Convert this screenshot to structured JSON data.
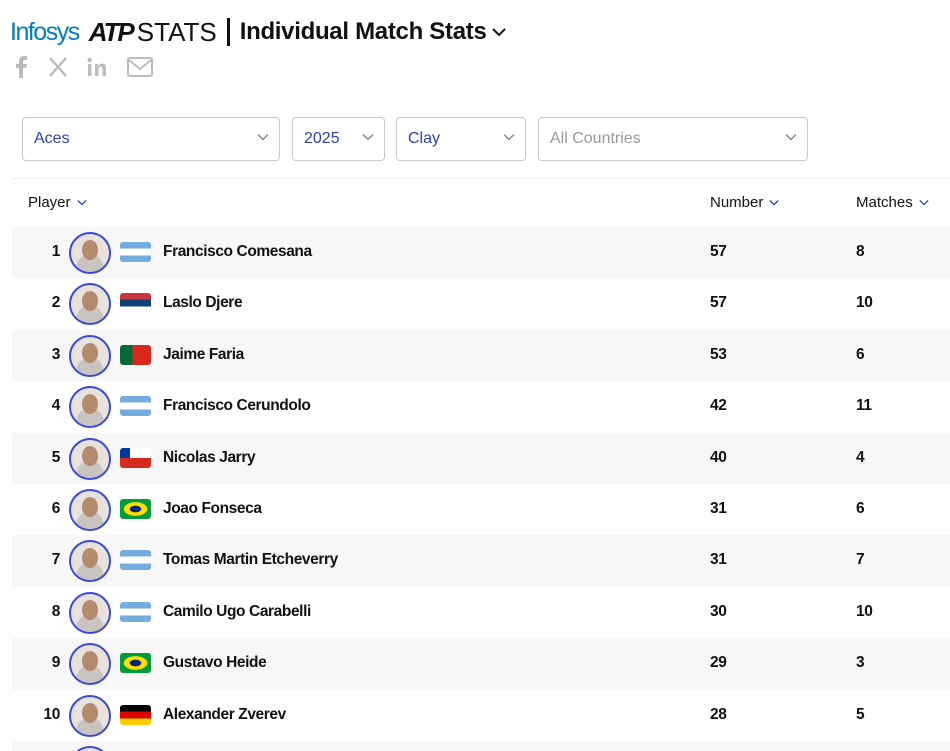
{
  "header": {
    "brand": "Infosys",
    "logo": "ATP",
    "stats": "STATS",
    "title": "Individual Match Stats"
  },
  "filters": [
    "Aces",
    "2025",
    "Clay",
    "All Countries"
  ],
  "table": {
    "columns": [
      "Player",
      "Number",
      "Matches"
    ],
    "rows": [
      [
        1,
        "Francisco Comesana",
        57,
        8
      ],
      [
        2,
        "Laslo Djere",
        57,
        10
      ],
      [
        3,
        "Jaime Faria",
        53,
        6
      ],
      [
        4,
        "Francisco Cerundolo",
        42,
        11
      ],
      [
        5,
        "Nicolas Jarry",
        40,
        4
      ],
      [
        6,
        "Joao Fonseca",
        31,
        6
      ],
      [
        7,
        "Tomas Martin Etcheverry",
        31,
        7
      ],
      [
        8,
        "Camilo Ugo Carabelli",
        30,
        10
      ],
      [
        9,
        "Gustavo Heide",
        29,
        3
      ],
      [
        10,
        "Alexander Zverev",
        28,
        5
      ]
    ]
  }
}
